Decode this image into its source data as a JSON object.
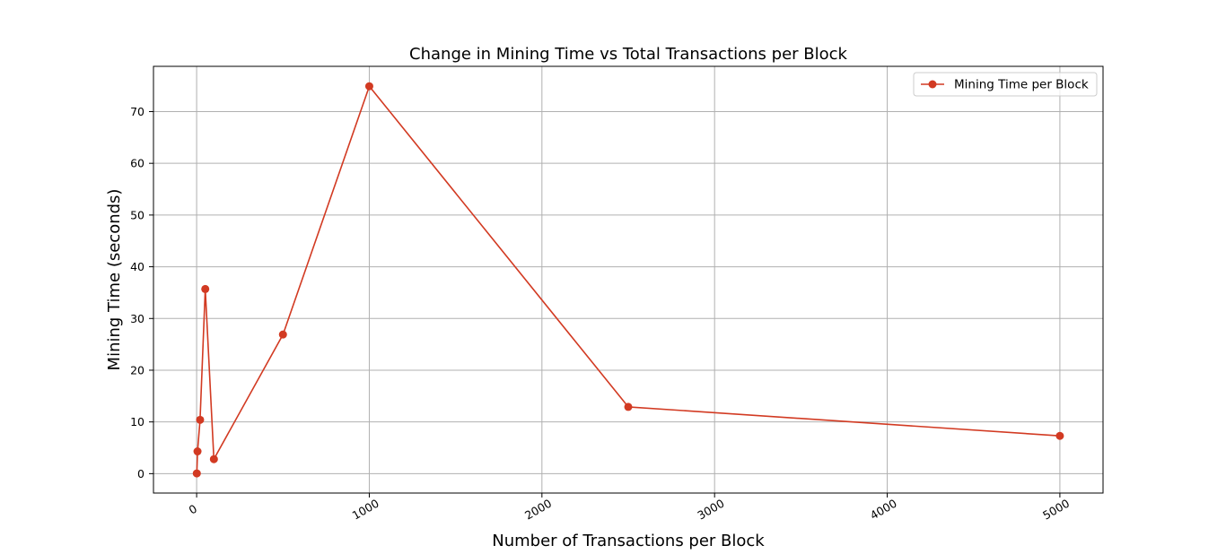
{
  "chart_data": {
    "type": "line",
    "title": "Change in Mining Time vs Total Transactions per Block",
    "xlabel": "Number of Transactions per Block",
    "ylabel": "Mining Time (seconds)",
    "xlim": [
      -250,
      5250
    ],
    "ylim": [
      -3.75,
      78.75
    ],
    "xticks": [
      0,
      1000,
      2000,
      3000,
      4000,
      5000
    ],
    "yticks": [
      0,
      10,
      20,
      30,
      40,
      50,
      60,
      70
    ],
    "grid": true,
    "legend_position": "top-right",
    "series": [
      {
        "name": "Mining Time per Block",
        "color": "#d23a22",
        "marker": "circle",
        "x": [
          1,
          5,
          20,
          50,
          100,
          500,
          1000,
          2500,
          5000
        ],
        "y": [
          0.05,
          4.3,
          10.4,
          35.7,
          2.8,
          26.9,
          74.9,
          12.9,
          7.3
        ]
      }
    ]
  }
}
